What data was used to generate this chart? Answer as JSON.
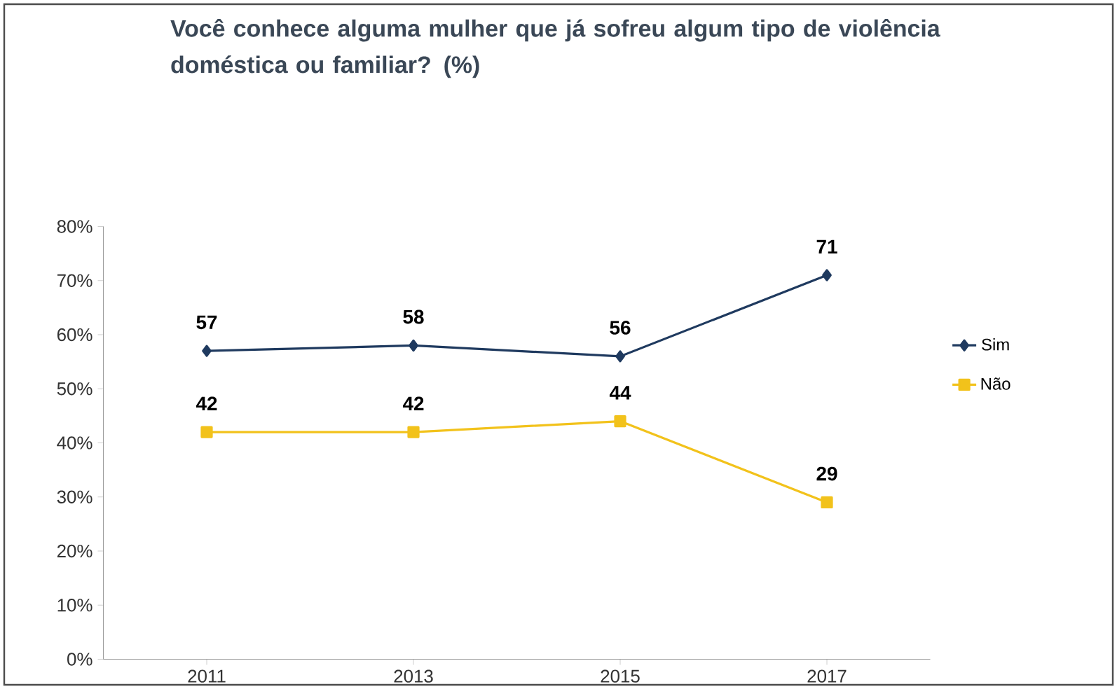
{
  "chart_data": {
    "type": "line",
    "title": "Você conhece alguma mulher que já sofreu algum tipo de violência doméstica ou familiar? (%)",
    "categories": [
      "2011",
      "2013",
      "2015",
      "2017"
    ],
    "series": [
      {
        "name": "Sim",
        "color": "#1f3a5f",
        "marker": "diamond",
        "values": [
          57,
          58,
          56,
          71
        ]
      },
      {
        "name": "Não",
        "color": "#f2c21b",
        "marker": "square",
        "values": [
          42,
          42,
          44,
          29
        ]
      }
    ],
    "ylim": [
      0,
      80
    ],
    "yticks": [
      {
        "value": 0,
        "label": "0%"
      },
      {
        "value": 10,
        "label": "10%"
      },
      {
        "value": 20,
        "label": "20%"
      },
      {
        "value": 30,
        "label": "30%"
      },
      {
        "value": 40,
        "label": "40%"
      },
      {
        "value": 50,
        "label": "50%"
      },
      {
        "value": 60,
        "label": "60%"
      },
      {
        "value": 70,
        "label": "70%"
      },
      {
        "value": 80,
        "label": "80%"
      }
    ],
    "data_labels": true,
    "grid": false,
    "legend": "right"
  }
}
